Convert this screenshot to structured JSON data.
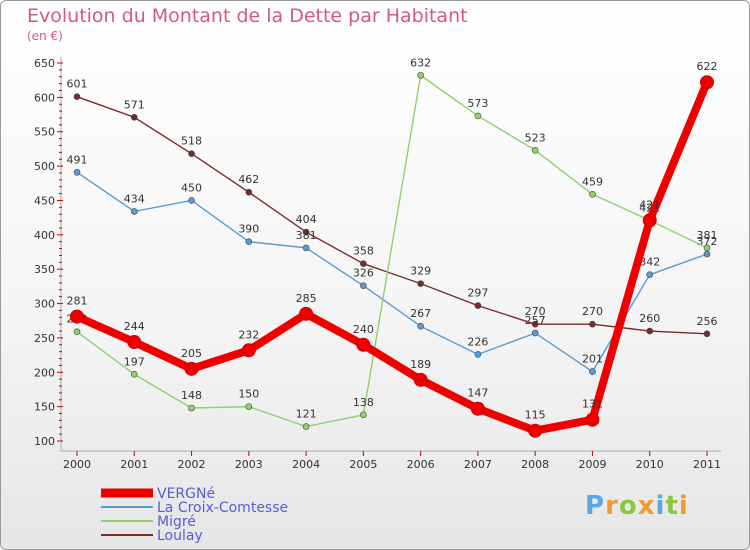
{
  "title": "Evolution du Montant de la Dette par Habitant",
  "subtitle": "(en €)",
  "logo": {
    "text": "Proxiti",
    "letters": [
      "P",
      "r",
      "o",
      "x",
      "i",
      "t",
      "i"
    ]
  },
  "chart_data": {
    "type": "line",
    "categories": [
      "2000",
      "2001",
      "2002",
      "2003",
      "2004",
      "2005",
      "2006",
      "2007",
      "2008",
      "2009",
      "2010",
      "2011"
    ],
    "ylim": [
      100,
      650
    ],
    "yticks": [
      100,
      150,
      200,
      250,
      300,
      350,
      400,
      450,
      500,
      550,
      600,
      650
    ],
    "grid": false,
    "legend_position": "bottom-left",
    "series": [
      {
        "name": "Loulay",
        "color": "#7a2a2a",
        "values": [
          601,
          571,
          518,
          462,
          404,
          358,
          329,
          297,
          270,
          270,
          260,
          256
        ]
      },
      {
        "name": "La Croix-Comtesse",
        "color": "#5b9bd5",
        "values": [
          491,
          434,
          450,
          390,
          381,
          326,
          267,
          226,
          257,
          201,
          342,
          372
        ]
      },
      {
        "name": "Migré",
        "color": "#8fd16a",
        "values": [
          259,
          197,
          148,
          150,
          121,
          138,
          632,
          573,
          523,
          459,
          421,
          381
        ]
      },
      {
        "name": "VERGNé",
        "color": "#ee0000",
        "values": [
          281,
          244,
          205,
          232,
          285,
          240,
          189,
          147,
          115,
          131,
          421,
          622
        ]
      }
    ],
    "legend_order": [
      "VERGNé",
      "La Croix-Comtesse",
      "Migré",
      "Loulay"
    ]
  }
}
